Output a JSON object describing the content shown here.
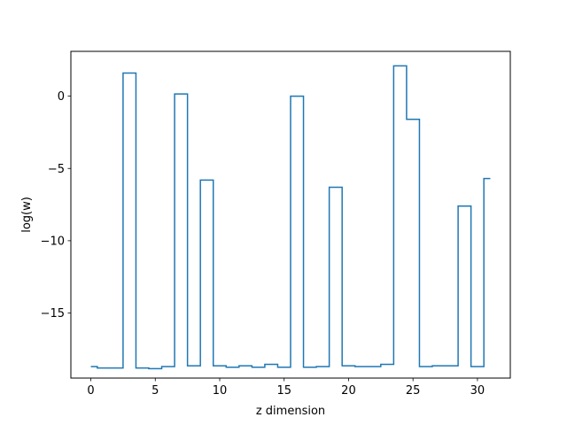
{
  "chart_data": {
    "type": "line",
    "drawstyle": "steps-mid",
    "title": "",
    "xlabel": "z dimension",
    "ylabel": "log(w)",
    "xlim": [
      -1.55,
      32.55
    ],
    "ylim": [
      -19.5,
      3.1
    ],
    "xticks": [
      0,
      5,
      10,
      15,
      20,
      25,
      30
    ],
    "yticks": [
      -15,
      -10,
      -5,
      0
    ],
    "ytick_labels": [
      "−15",
      "−10",
      "−5",
      "0"
    ],
    "grid": false,
    "series": [
      {
        "color": "#1f77b4",
        "x": [
          0,
          1,
          2,
          3,
          4,
          5,
          6,
          7,
          8,
          9,
          10,
          11,
          12,
          13,
          14,
          15,
          16,
          17,
          18,
          19,
          20,
          21,
          22,
          23,
          24,
          25,
          26,
          27,
          28,
          29,
          30,
          31
        ],
        "y": [
          -18.7,
          -18.8,
          -18.8,
          1.6,
          -18.8,
          -18.85,
          -18.7,
          0.15,
          -18.65,
          -5.8,
          -18.65,
          -18.75,
          -18.65,
          -18.75,
          -18.55,
          -18.75,
          0.0,
          -18.75,
          -18.7,
          -6.3,
          -18.65,
          -18.7,
          -18.7,
          -18.55,
          2.1,
          -1.6,
          -18.7,
          -18.65,
          -18.65,
          -7.6,
          -18.7,
          -5.7
        ]
      }
    ]
  }
}
